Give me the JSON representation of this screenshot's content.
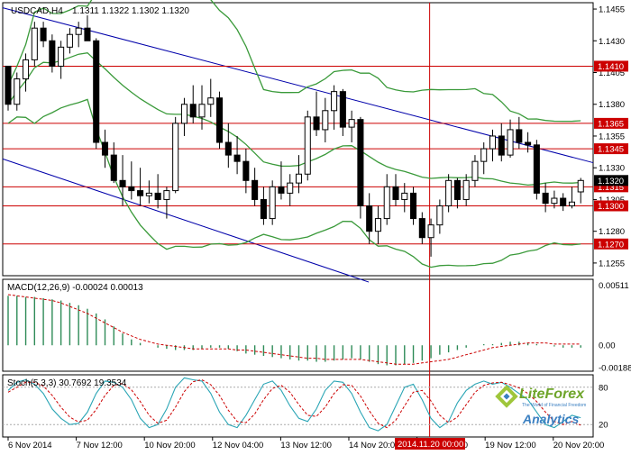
{
  "header": {
    "symbol": "USDCAD,H4",
    "ohlc": "1.1311 1.1322 1.1302 1.1320"
  },
  "macd_label": "MACD(12,26,9) -0.00024 0.00013",
  "stoch_label": "Stoch(5,3,3) 30.7692 19.3534",
  "crosshair_label": "2014.11.20 00:00",
  "branding": {
    "name": "LiteForex",
    "tagline": "The World of Financial Freedom",
    "sub": "Analytics"
  },
  "colors": {
    "candle_line": "#000000",
    "bollinger": "#3a9a3a",
    "channel": "#0000aa",
    "level": "#cc0000",
    "macd_hist": "#2e8b57",
    "macd_signal": "#cc0000",
    "stoch_main": "#2aa5b5",
    "stoch_signal": "#cc0000"
  },
  "chart_data": [
    {
      "type": "candlestick",
      "title": "USDCAD,H4",
      "ylim": [
        1.1245,
        1.146
      ],
      "y_ticks": [
        "1.1455",
        "1.1430",
        "1.1405",
        "1.1380",
        "1.1355",
        "1.1330",
        "1.1305",
        "1.1280",
        "1.1255"
      ],
      "price_tag": "1.1320",
      "levels": [
        "1.1410",
        "1.1365",
        "1.1345",
        "1.1315",
        "1.1300",
        "1.1270"
      ],
      "x_tick_labels": [
        "6 Nov 2014",
        "7 Nov 12:00",
        "10 Nov 20:00",
        "12 Nov 04:00",
        "13 Nov 12:00",
        "14 Nov 20:00",
        "18 Nov 04:00",
        "19 Nov 12:00",
        "20 Nov 20:00"
      ],
      "candles": [
        [
          1.141,
          1.141,
          1.1375,
          1.138
        ],
        [
          1.138,
          1.1405,
          1.1375,
          1.14
        ],
        [
          1.14,
          1.142,
          1.139,
          1.1415
        ],
        [
          1.1415,
          1.1445,
          1.141,
          1.144
        ],
        [
          1.144,
          1.1445,
          1.1425,
          1.143
        ],
        [
          1.143,
          1.1435,
          1.1405,
          1.141
        ],
        [
          1.141,
          1.143,
          1.14,
          1.1425
        ],
        [
          1.1425,
          1.144,
          1.142,
          1.1435
        ],
        [
          1.1435,
          1.1445,
          1.1425,
          1.144
        ],
        [
          1.144,
          1.145,
          1.143,
          1.143
        ],
        [
          1.143,
          1.1432,
          1.1345,
          1.135
        ],
        [
          1.135,
          1.136,
          1.133,
          1.134
        ],
        [
          1.134,
          1.135,
          1.1318,
          1.132
        ],
        [
          1.132,
          1.134,
          1.13,
          1.1315
        ],
        [
          1.1315,
          1.1335,
          1.1305,
          1.1312
        ],
        [
          1.1312,
          1.133,
          1.13,
          1.1308
        ],
        [
          1.1308,
          1.132,
          1.1302,
          1.131
        ],
        [
          1.131,
          1.1325,
          1.1298,
          1.1305
        ],
        [
          1.1305,
          1.1315,
          1.129,
          1.1312
        ],
        [
          1.1312,
          1.137,
          1.131,
          1.1365
        ],
        [
          1.1365,
          1.1385,
          1.1355,
          1.138
        ],
        [
          1.138,
          1.1395,
          1.1365,
          1.137
        ],
        [
          1.137,
          1.1395,
          1.136,
          1.138
        ],
        [
          1.138,
          1.14,
          1.137,
          1.1385
        ],
        [
          1.1385,
          1.139,
          1.1345,
          1.135
        ],
        [
          1.135,
          1.1365,
          1.133,
          1.134
        ],
        [
          1.134,
          1.1355,
          1.1325,
          1.1335
        ],
        [
          1.1335,
          1.1345,
          1.131,
          1.132
        ],
        [
          1.132,
          1.133,
          1.13,
          1.1305
        ],
        [
          1.1305,
          1.1315,
          1.1285,
          1.129
        ],
        [
          1.129,
          1.132,
          1.1285,
          1.1315
        ],
        [
          1.1315,
          1.1335,
          1.1305,
          1.131
        ],
        [
          1.131,
          1.1325,
          1.13,
          1.1318
        ],
        [
          1.1318,
          1.134,
          1.131,
          1.1325
        ],
        [
          1.1325,
          1.1375,
          1.132,
          1.137
        ],
        [
          1.137,
          1.139,
          1.1355,
          1.136
        ],
        [
          1.136,
          1.1385,
          1.135,
          1.1375
        ],
        [
          1.1375,
          1.1395,
          1.136,
          1.139
        ],
        [
          1.139,
          1.1392,
          1.1355,
          1.1362
        ],
        [
          1.1362,
          1.1375,
          1.135,
          1.1368
        ],
        [
          1.1368,
          1.137,
          1.129,
          1.13
        ],
        [
          1.13,
          1.131,
          1.127,
          1.128
        ],
        [
          1.128,
          1.13,
          1.127,
          1.129
        ],
        [
          1.129,
          1.1325,
          1.1285,
          1.1315
        ],
        [
          1.1315,
          1.1325,
          1.13,
          1.1305
        ],
        [
          1.1305,
          1.1318,
          1.1295,
          1.131
        ],
        [
          1.131,
          1.1315,
          1.1285,
          1.129
        ],
        [
          1.129,
          1.1295,
          1.127,
          1.1275
        ],
        [
          1.1275,
          1.129,
          1.126,
          1.1285
        ],
        [
          1.1285,
          1.1305,
          1.1278,
          1.13
        ],
        [
          1.13,
          1.1325,
          1.1295,
          1.132
        ],
        [
          1.132,
          1.1322,
          1.1298,
          1.1305
        ],
        [
          1.1305,
          1.1325,
          1.13,
          1.132
        ],
        [
          1.132,
          1.134,
          1.1315,
          1.1335
        ],
        [
          1.1335,
          1.135,
          1.1325,
          1.1345
        ],
        [
          1.1345,
          1.136,
          1.1335,
          1.1355
        ],
        [
          1.1355,
          1.1365,
          1.1335,
          1.134
        ],
        [
          1.134,
          1.1368,
          1.1338,
          1.136
        ],
        [
          1.136,
          1.137,
          1.1345,
          1.135
        ],
        [
          1.135,
          1.1358,
          1.1342,
          1.1348
        ],
        [
          1.1348,
          1.1352,
          1.1305,
          1.131
        ],
        [
          1.131,
          1.1318,
          1.1295,
          1.1302
        ],
        [
          1.1302,
          1.1312,
          1.1298,
          1.1306
        ],
        [
          1.1306,
          1.131,
          1.1296,
          1.13
        ],
        [
          1.13,
          1.1315,
          1.1298,
          1.1303
        ],
        [
          1.1311,
          1.1322,
          1.1302,
          1.132
        ]
      ]
    },
    {
      "type": "histogram",
      "title": "MACD(12,26,9)",
      "ylim": [
        -0.0022,
        0.0056
      ],
      "y_ticks": [
        "0.00511",
        "0.00",
        "-0.00188"
      ],
      "histogram": [
        0.0042,
        0.0042,
        0.0041,
        0.0041,
        0.004,
        0.0039,
        0.0038,
        0.0036,
        0.0034,
        0.0031,
        0.0027,
        0.0022,
        0.0016,
        0.001,
        0.0005,
        0.0002,
        0.0,
        -0.0002,
        -0.0003,
        -0.0004,
        -0.0004,
        -0.0004,
        -0.0003,
        -0.0002,
        -0.0002,
        -0.0003,
        -0.0005,
        -0.0007,
        -0.0008,
        -0.0009,
        -0.001,
        -0.0011,
        -0.0012,
        -0.0013,
        -0.0013,
        -0.0014,
        -0.0014,
        -0.0013,
        -0.0012,
        -0.0011,
        -0.0012,
        -0.0014,
        -0.0016,
        -0.0017,
        -0.0017,
        -0.0016,
        -0.0015,
        -0.0013,
        -0.0011,
        -0.0008,
        -0.0006,
        -0.0004,
        -0.0002,
        0.0,
        0.0001,
        0.0001,
        0.0002,
        0.0003,
        0.0003,
        0.0002,
        0.0001,
        0.0,
        -0.0001,
        -0.0002,
        -0.0002,
        -0.0002
      ],
      "signal": [
        0.0043,
        0.0042,
        0.0041,
        0.004,
        0.0039,
        0.0038,
        0.0036,
        0.0033,
        0.003,
        0.0027,
        0.0023,
        0.0019,
        0.0015,
        0.0011,
        0.0008,
        0.0005,
        0.0003,
        0.0001,
        0.0,
        -0.0001,
        -0.0002,
        -0.0003,
        -0.0003,
        -0.0003,
        -0.0003,
        -0.0003,
        -0.0004,
        -0.0004,
        -0.0005,
        -0.0006,
        -0.0007,
        -0.0008,
        -0.0009,
        -0.001,
        -0.0011,
        -0.0011,
        -0.0012,
        -0.0012,
        -0.0012,
        -0.0012,
        -0.0012,
        -0.0013,
        -0.0014,
        -0.0015,
        -0.0016,
        -0.0016,
        -0.0016,
        -0.0015,
        -0.0014,
        -0.0013,
        -0.0012,
        -0.001,
        -0.0008,
        -0.0006,
        -0.0004,
        -0.0002,
        -0.0001,
        0.0,
        0.0001,
        0.0002,
        0.0002,
        0.0002,
        0.0001,
        0.0001,
        0.0001,
        0.0001
      ]
    },
    {
      "type": "line",
      "title": "Stoch(5,3,3)",
      "ylim": [
        0,
        100
      ],
      "y_ticks": [
        "80",
        "20"
      ],
      "main": [
        75,
        88,
        92,
        85,
        70,
        45,
        30,
        20,
        22,
        40,
        70,
        90,
        88,
        80,
        60,
        30,
        15,
        20,
        45,
        80,
        95,
        92,
        90,
        70,
        40,
        20,
        15,
        35,
        60,
        85,
        90,
        75,
        50,
        30,
        25,
        45,
        75,
        90,
        88,
        70,
        40,
        15,
        10,
        20,
        50,
        80,
        85,
        60,
        30,
        15,
        25,
        55,
        75,
        85,
        90,
        85,
        88,
        80,
        70,
        60,
        40,
        20,
        15,
        25,
        35,
        31
      ],
      "signal": [
        72,
        80,
        88,
        88,
        82,
        67,
        48,
        32,
        24,
        27,
        44,
        67,
        83,
        86,
        76,
        57,
        35,
        22,
        27,
        48,
        73,
        89,
        92,
        84,
        67,
        43,
        25,
        23,
        37,
        60,
        78,
        83,
        72,
        52,
        35,
        33,
        48,
        70,
        84,
        83,
        66,
        42,
        22,
        15,
        27,
        50,
        72,
        75,
        58,
        35,
        23,
        32,
        52,
        72,
        83,
        87,
        88,
        84,
        79,
        70,
        57,
        40,
        25,
        20,
        25,
        19
      ]
    }
  ]
}
